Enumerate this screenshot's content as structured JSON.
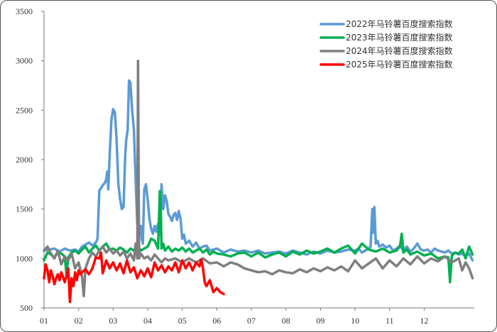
{
  "chart_data": {
    "type": "line",
    "title": "",
    "xlabel": "",
    "ylabel": "",
    "ylim": [
      500,
      3500
    ],
    "yticks": [
      500,
      1000,
      1500,
      2000,
      2500,
      3000,
      3500
    ],
    "xlim": [
      1,
      13.45
    ],
    "xticks": [
      "01",
      "02",
      "03",
      "04",
      "05",
      "06",
      "07",
      "08",
      "09",
      "10",
      "11",
      "12"
    ],
    "grid": false,
    "legend_position": "top-right",
    "series": [
      {
        "name": "2022年马铃薯百度搜索指数",
        "color": "#5b9bd5",
        "x": [
          1.0,
          1.15,
          1.3,
          1.45,
          1.6,
          1.75,
          1.9,
          2.0,
          2.1,
          2.2,
          2.3,
          2.4,
          2.5,
          2.55,
          2.58,
          2.6,
          2.65,
          2.7,
          2.75,
          2.8,
          2.83,
          2.86,
          2.9,
          2.95,
          3.0,
          3.05,
          3.1,
          3.15,
          3.2,
          3.25,
          3.3,
          3.35,
          3.38,
          3.42,
          3.46,
          3.5,
          3.55,
          3.6,
          3.65,
          3.7,
          3.75,
          3.8,
          3.83,
          3.86,
          3.9,
          3.95,
          4.0,
          4.05,
          4.1,
          4.15,
          4.2,
          4.25,
          4.3,
          4.35,
          4.4,
          4.45,
          4.5,
          4.55,
          4.6,
          4.65,
          4.7,
          4.75,
          4.8,
          4.85,
          4.9,
          4.95,
          5.0,
          5.05,
          5.1,
          5.2,
          5.3,
          5.4,
          5.5,
          5.6,
          5.7,
          5.8,
          6.0,
          6.2,
          6.4,
          6.6,
          6.8,
          7.0,
          7.2,
          7.4,
          7.6,
          7.8,
          8.0,
          8.2,
          8.4,
          8.6,
          8.8,
          9.0,
          9.2,
          9.4,
          9.6,
          9.8,
          10.0,
          10.1,
          10.2,
          10.3,
          10.4,
          10.45,
          10.48,
          10.5,
          10.53,
          10.56,
          10.6,
          10.65,
          10.7,
          10.8,
          10.9,
          11.0,
          11.1,
          11.2,
          11.3,
          11.4,
          11.5,
          11.6,
          11.7,
          11.8,
          11.9,
          12.0,
          12.1,
          12.2,
          12.3,
          12.4,
          12.5,
          12.6,
          12.7,
          12.8,
          12.9,
          13.0,
          13.1,
          13.2,
          13.3,
          13.4
        ],
        "values": [
          1080,
          1090,
          1100,
          1070,
          1100,
          1080,
          1090,
          1070,
          1120,
          1140,
          1160,
          1130,
          1160,
          1200,
          1500,
          1690,
          1710,
          1740,
          1760,
          1800,
          1880,
          1700,
          2050,
          2400,
          2510,
          2480,
          2200,
          1750,
          1600,
          1500,
          1520,
          2050,
          2200,
          2300,
          2800,
          2780,
          2500,
          2300,
          1800,
          1350,
          1260,
          1330,
          1200,
          1150,
          1700,
          1750,
          1600,
          1400,
          1300,
          1250,
          1330,
          1270,
          1350,
          1240,
          1750,
          1500,
          1640,
          1580,
          1450,
          1420,
          1380,
          1440,
          1460,
          1390,
          1480,
          1400,
          1200,
          1240,
          1150,
          1180,
          1120,
          1160,
          1100,
          1120,
          1130,
          1080,
          1100,
          1060,
          1090,
          1070,
          1080,
          1060,
          1080,
          1050,
          1060,
          1070,
          1050,
          1080,
          1060,
          1040,
          1070,
          1050,
          1080,
          1060,
          1070,
          1090,
          1080,
          1100,
          1060,
          1080,
          1100,
          1120,
          1350,
          1500,
          1260,
          1520,
          1150,
          1180,
          1120,
          1140,
          1110,
          1130,
          1080,
          1100,
          1130,
          1080,
          1120,
          1070,
          1100,
          1150,
          1090,
          1080,
          1090,
          1060,
          1100,
          1080,
          1070,
          1060,
          1080,
          1050,
          1060,
          1040,
          1050,
          1020,
          1050,
          980
        ]
      },
      {
        "name": "2023年马铃薯百度搜索指数",
        "color": "#00b050",
        "x": [
          1.0,
          1.1,
          1.2,
          1.3,
          1.4,
          1.5,
          1.6,
          1.65,
          1.7,
          1.8,
          1.9,
          2.0,
          2.1,
          2.2,
          2.3,
          2.4,
          2.5,
          2.6,
          2.7,
          2.8,
          2.9,
          3.0,
          3.1,
          3.2,
          3.3,
          3.4,
          3.5,
          3.6,
          3.7,
          3.8,
          3.9,
          4.0,
          4.1,
          4.2,
          4.3,
          4.35,
          4.38,
          4.4,
          4.45,
          4.5,
          4.6,
          4.7,
          4.8,
          4.9,
          5.0,
          5.1,
          5.2,
          5.3,
          5.4,
          5.5,
          5.6,
          5.7,
          5.8,
          5.9,
          6.0,
          6.2,
          6.4,
          6.6,
          6.8,
          7.0,
          7.2,
          7.4,
          7.6,
          7.8,
          8.0,
          8.2,
          8.4,
          8.6,
          8.8,
          9.0,
          9.2,
          9.4,
          9.6,
          9.8,
          10.0,
          10.2,
          10.4,
          10.6,
          10.8,
          11.0,
          11.2,
          11.3,
          11.35,
          11.38,
          11.4,
          11.5,
          11.6,
          11.8,
          12.0,
          12.2,
          12.4,
          12.6,
          12.7,
          12.75,
          12.8,
          12.9,
          13.0,
          13.1,
          13.2,
          13.3,
          13.4
        ],
        "values": [
          980,
          1060,
          1040,
          1010,
          1060,
          1050,
          1020,
          840,
          1010,
          1060,
          1080,
          1050,
          1090,
          1120,
          1060,
          1100,
          1130,
          1080,
          1120,
          1150,
          1090,
          1100,
          1080,
          1110,
          1090,
          1060,
          1100,
          1080,
          1130,
          1080,
          1100,
          1120,
          1200,
          1180,
          1100,
          1680,
          1500,
          1100,
          1150,
          1080,
          1120,
          1070,
          1100,
          1080,
          1110,
          1070,
          1100,
          1060,
          1080,
          1100,
          1060,
          1090,
          1040,
          1070,
          1050,
          1040,
          1020,
          1050,
          1060,
          1020,
          1060,
          1010,
          1040,
          1060,
          1020,
          1070,
          1040,
          1080,
          1050,
          1070,
          1100,
          1060,
          1100,
          1130,
          1050,
          1150,
          1090,
          1070,
          1100,
          1060,
          1080,
          1120,
          1250,
          1150,
          1060,
          1090,
          1040,
          1070,
          1030,
          1050,
          1000,
          1020,
          1010,
          760,
          1030,
          1060,
          1050,
          1090,
          1000,
          1120,
          1040
        ]
      },
      {
        "name": "2024年马铃薯百度搜索指数",
        "color": "#7f7f7f",
        "x": [
          1.0,
          1.1,
          1.2,
          1.3,
          1.4,
          1.5,
          1.6,
          1.7,
          1.8,
          1.9,
          2.0,
          2.1,
          2.15,
          2.2,
          2.3,
          2.4,
          2.5,
          2.6,
          2.7,
          2.8,
          2.9,
          3.0,
          3.1,
          3.2,
          3.3,
          3.4,
          3.5,
          3.6,
          3.65,
          3.7,
          3.72,
          3.75,
          3.8,
          3.9,
          4.0,
          4.1,
          4.2,
          4.3,
          4.4,
          4.5,
          4.6,
          4.8,
          5.0,
          5.2,
          5.4,
          5.6,
          5.8,
          6.0,
          6.2,
          6.4,
          6.6,
          6.8,
          7.0,
          7.2,
          7.4,
          7.6,
          7.8,
          8.0,
          8.2,
          8.4,
          8.6,
          8.8,
          9.0,
          9.2,
          9.4,
          9.6,
          9.8,
          10.0,
          10.2,
          10.4,
          10.6,
          10.8,
          11.0,
          11.2,
          11.4,
          11.6,
          11.8,
          12.0,
          12.2,
          12.4,
          12.6,
          12.8,
          13.0,
          13.1,
          13.2,
          13.3,
          13.4
        ],
        "values": [
          1080,
          1120,
          1050,
          1000,
          1080,
          940,
          1020,
          980,
          1050,
          900,
          960,
          820,
          620,
          900,
          1000,
          1060,
          1020,
          1080,
          1120,
          1060,
          1100,
          1050,
          1080,
          1030,
          1070,
          1000,
          1050,
          980,
          1150,
          1000,
          3000,
          1000,
          1050,
          1000,
          1020,
          980,
          1040,
          1000,
          960,
          1000,
          980,
          1000,
          960,
          1000,
          960,
          1000,
          950,
          960,
          920,
          960,
          940,
          900,
          880,
          860,
          870,
          840,
          880,
          860,
          850,
          890,
          860,
          900,
          870,
          910,
          880,
          920,
          870,
          980,
          900,
          950,
          1000,
          900,
          980,
          920,
          1000,
          940,
          1020,
          950,
          1000,
          970,
          1020,
          960,
          1000,
          880,
          960,
          900,
          800
        ]
      },
      {
        "name": "2025年马铃薯百度搜索指数",
        "color": "#ff0000",
        "x": [
          1.0,
          1.05,
          1.1,
          1.15,
          1.2,
          1.25,
          1.3,
          1.35,
          1.4,
          1.45,
          1.5,
          1.55,
          1.6,
          1.65,
          1.7,
          1.75,
          1.8,
          1.85,
          1.9,
          1.95,
          2.0,
          2.05,
          2.1,
          2.2,
          2.3,
          2.4,
          2.5,
          2.6,
          2.65,
          2.7,
          2.8,
          2.9,
          3.0,
          3.1,
          3.2,
          3.3,
          3.4,
          3.5,
          3.6,
          3.7,
          3.8,
          3.9,
          4.0,
          4.1,
          4.2,
          4.3,
          4.4,
          4.5,
          4.6,
          4.7,
          4.8,
          4.9,
          5.0,
          5.1,
          5.2,
          5.3,
          5.4,
          5.5,
          5.55,
          5.6,
          5.65,
          5.7,
          5.8,
          5.9,
          6.0,
          6.1,
          6.2
        ],
        "values": [
          800,
          940,
          880,
          760,
          880,
          820,
          740,
          800,
          840,
          780,
          860,
          810,
          760,
          820,
          900,
          560,
          800,
          720,
          860,
          780,
          880,
          840,
          860,
          890,
          840,
          900,
          1010,
          1000,
          1060,
          850,
          980,
          900,
          960,
          880,
          950,
          850,
          980,
          860,
          910,
          800,
          880,
          820,
          900,
          810,
          960,
          880,
          930,
          860,
          920,
          880,
          960,
          860,
          980,
          900,
          960,
          880,
          960,
          920,
          990,
          900,
          760,
          720,
          780,
          660,
          700,
          660,
          640
        ]
      }
    ]
  }
}
